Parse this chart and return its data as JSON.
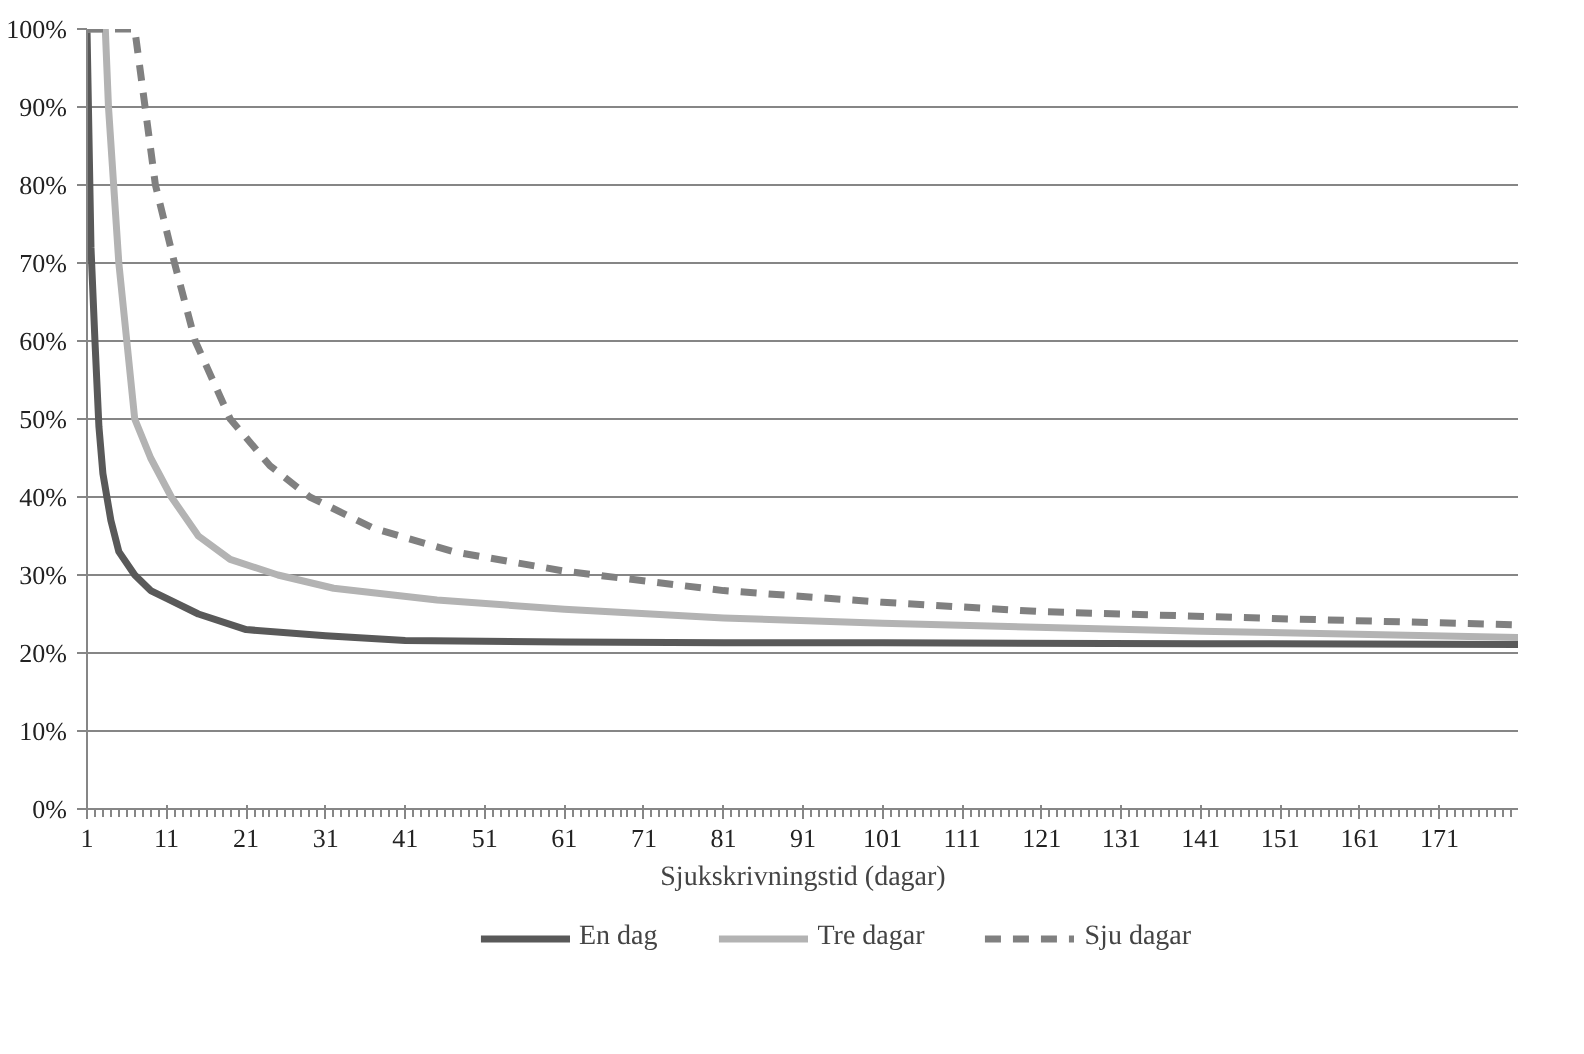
{
  "chart_data": {
    "type": "line",
    "xlabel": "Sjukskrivningstid (dagar)",
    "xlim": [
      1,
      181
    ],
    "xticks": [
      1,
      11,
      21,
      31,
      41,
      51,
      61,
      71,
      81,
      91,
      101,
      111,
      121,
      131,
      141,
      151,
      161,
      171
    ],
    "ylim": [
      0,
      100
    ],
    "yticks": [
      {
        "value": 0,
        "label": "0%"
      },
      {
        "value": 10,
        "label": "10%"
      },
      {
        "value": 20,
        "label": "20%"
      },
      {
        "value": 30,
        "label": "30%"
      },
      {
        "value": 40,
        "label": "40%"
      },
      {
        "value": 50,
        "label": "50%"
      },
      {
        "value": 60,
        "label": "60%"
      },
      {
        "value": 70,
        "label": "70%"
      },
      {
        "value": 80,
        "label": "80%"
      },
      {
        "value": 90,
        "label": "90%"
      },
      {
        "value": 100,
        "label": "100%"
      }
    ],
    "grid": "y",
    "legend": "bottom",
    "marker": "none",
    "series": [
      {
        "name": "En dag",
        "color": "#595959",
        "line_style": "solid",
        "x": [
          1,
          1.5,
          2,
          2.5,
          3,
          4,
          5,
          7,
          9,
          11,
          15,
          21,
          31,
          41,
          61,
          81,
          101,
          141,
          181
        ],
        "values": [
          100,
          72,
          60,
          49,
          43,
          37,
          33,
          30,
          28,
          27,
          25,
          23,
          22.2,
          21.6,
          21.4,
          21.3,
          21.3,
          21.2,
          21.1
        ]
      },
      {
        "name": "Tre dagar",
        "color": "#b3b3b3",
        "line_style": "solid",
        "x": [
          1,
          3.3,
          3.7,
          5,
          7,
          9,
          11.6,
          15,
          19,
          25,
          32,
          45,
          61,
          81,
          101,
          141,
          181
        ],
        "values": [
          100,
          100,
          90,
          70,
          50,
          45,
          40,
          35,
          32,
          30,
          28.3,
          26.8,
          25.6,
          24.5,
          23.8,
          22.8,
          22
        ]
      },
      {
        "name": "Sju dagar",
        "color": "#808080",
        "line_style": "dashed",
        "x": [
          1,
          7,
          8.3,
          9.6,
          12,
          14.6,
          19,
          24,
          29,
          37,
          47,
          61,
          81,
          101,
          121,
          151,
          181
        ],
        "values": [
          100,
          100,
          90,
          80,
          70,
          60,
          50,
          44,
          40,
          36,
          33,
          30.5,
          28,
          26.5,
          25.3,
          24.4,
          23.6
        ]
      }
    ]
  }
}
